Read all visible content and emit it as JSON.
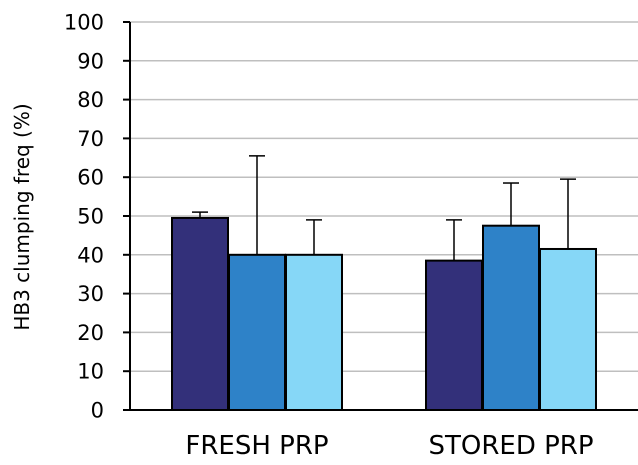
{
  "chart_data": {
    "type": "bar",
    "title": "",
    "xlabel": "",
    "ylabel": "HB3 clumping freq (%)",
    "ylim": [
      0,
      100
    ],
    "yticks": [
      0,
      10,
      20,
      30,
      40,
      50,
      60,
      70,
      80,
      90,
      100
    ],
    "grid": true,
    "legend": "none",
    "categories": [
      "FRESH PRP",
      "STORED PRP"
    ],
    "series": [
      {
        "color": "#33307a",
        "values": [
          49.5,
          38.5
        ],
        "errors": [
          1.5,
          10.5
        ]
      },
      {
        "color": "#2e82c8",
        "values": [
          40,
          47.5
        ],
        "errors": [
          25.5,
          11
        ]
      },
      {
        "color": "#86d7f7",
        "values": [
          40,
          41.5
        ],
        "errors": [
          9,
          18
        ]
      }
    ]
  }
}
